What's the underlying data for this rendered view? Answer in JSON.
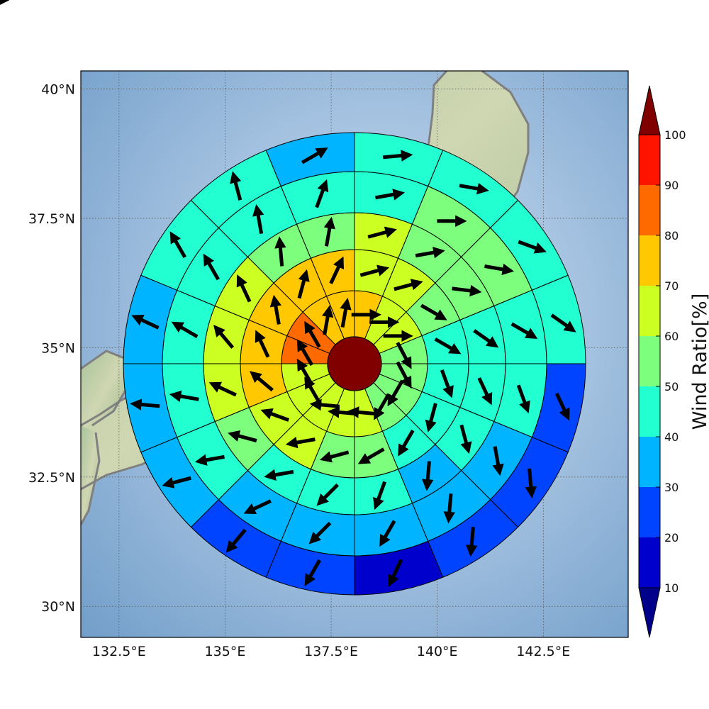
{
  "map": {
    "lon_ticks": [
      "132.5°E",
      "135°E",
      "137.5°E",
      "140°E",
      "142.5°E"
    ],
    "lon_values": [
      132.5,
      135,
      137.5,
      140,
      142.5
    ],
    "lat_ticks": [
      "40°N",
      "37.5°N",
      "35°N",
      "32.5°N",
      "30°N"
    ],
    "lat_values": [
      40,
      37.5,
      35,
      32.5,
      30
    ],
    "lon_range": [
      131.6,
      144.5
    ],
    "lat_range": [
      29.4,
      40.35
    ],
    "center": {
      "lon": 138.0,
      "lat": 35.0
    },
    "basemap": "shaded relief with gray coastlines, dotted graticule",
    "coastline_color": "#808080",
    "ocean_color": "#7ba5cc"
  },
  "colorbar": {
    "title": "Wind Ratio[%]",
    "labels": [
      "10",
      "20",
      "30",
      "40",
      "50",
      "60",
      "70",
      "80",
      "90",
      "100"
    ],
    "levels": [
      10,
      20,
      30,
      40,
      50,
      60,
      70,
      80,
      90,
      100
    ],
    "colors": [
      "#0000cd",
      "#0044ff",
      "#00b4ff",
      "#22ffd0",
      "#7dff7d",
      "#ccff22",
      "#ffc800",
      "#ff6a00",
      "#ff1400"
    ],
    "under_color": "#00008b",
    "over_color": "#800000",
    "extend": "both"
  },
  "chart_data": {
    "type": "polar-sector-grid",
    "variable": "wind ratio (%) with mean wind direction arrows",
    "center_value": 100,
    "ring_radius_km": [
      0,
      100,
      200,
      300,
      400,
      500,
      600
    ],
    "sectors": 16,
    "sector_order": "clockwise from north, first sector spans N to NNE",
    "rings": [
      {
        "ring": 1,
        "ratio": [
          75,
          65,
          65,
          55,
          55,
          55,
          55,
          65,
          65,
          65,
          65,
          65,
          82,
          82,
          75,
          75
        ],
        "arrow_deg": [
          90,
          90,
          90,
          152,
          152,
          210,
          210,
          275,
          275,
          275,
          330,
          330,
          330,
          330,
          10,
          10
        ]
      },
      {
        "ring": 2,
        "ratio": [
          65,
          65,
          55,
          45,
          45,
          45,
          45,
          55,
          55,
          65,
          65,
          75,
          75,
          75,
          75,
          75
        ],
        "arrow_deg": [
          75,
          75,
          120,
          120,
          160,
          195,
          210,
          240,
          255,
          260,
          290,
          310,
          335,
          350,
          15,
          25
        ]
      },
      {
        "ring": 3,
        "ratio": [
          65,
          55,
          55,
          45,
          45,
          45,
          35,
          45,
          45,
          45,
          55,
          65,
          65,
          65,
          55,
          55
        ],
        "arrow_deg": [
          75,
          80,
          97,
          125,
          155,
          165,
          185,
          200,
          225,
          260,
          285,
          295,
          320,
          335,
          355,
          10
        ]
      },
      {
        "ring": 4,
        "ratio": [
          45,
          55,
          55,
          45,
          45,
          35,
          35,
          35,
          35,
          35,
          45,
          45,
          45,
          45,
          45,
          45
        ],
        "arrow_deg": [
          80,
          90,
          100,
          120,
          160,
          170,
          185,
          210,
          225,
          245,
          260,
          280,
          300,
          330,
          350,
          20
        ]
      },
      {
        "ring": 5,
        "ratio": [
          45,
          45,
          45,
          45,
          25,
          25,
          25,
          15,
          25,
          25,
          35,
          35,
          35,
          45,
          45,
          35
        ],
        "arrow_deg": [
          85,
          100,
          110,
          125,
          155,
          175,
          185,
          205,
          210,
          220,
          255,
          275,
          295,
          330,
          345,
          60
        ]
      },
      {
        "ring": 6,
        "ratio": [
          45,
          45,
          45,
          25,
          25,
          15,
          15,
          15,
          25,
          25,
          25,
          35,
          35,
          35,
          45,
          35
        ],
        "arrow_deg": [
          90,
          110,
          130,
          150,
          165,
          170,
          175,
          195,
          220,
          245,
          265,
          285,
          300,
          340,
          350,
          70
        ]
      }
    ]
  }
}
